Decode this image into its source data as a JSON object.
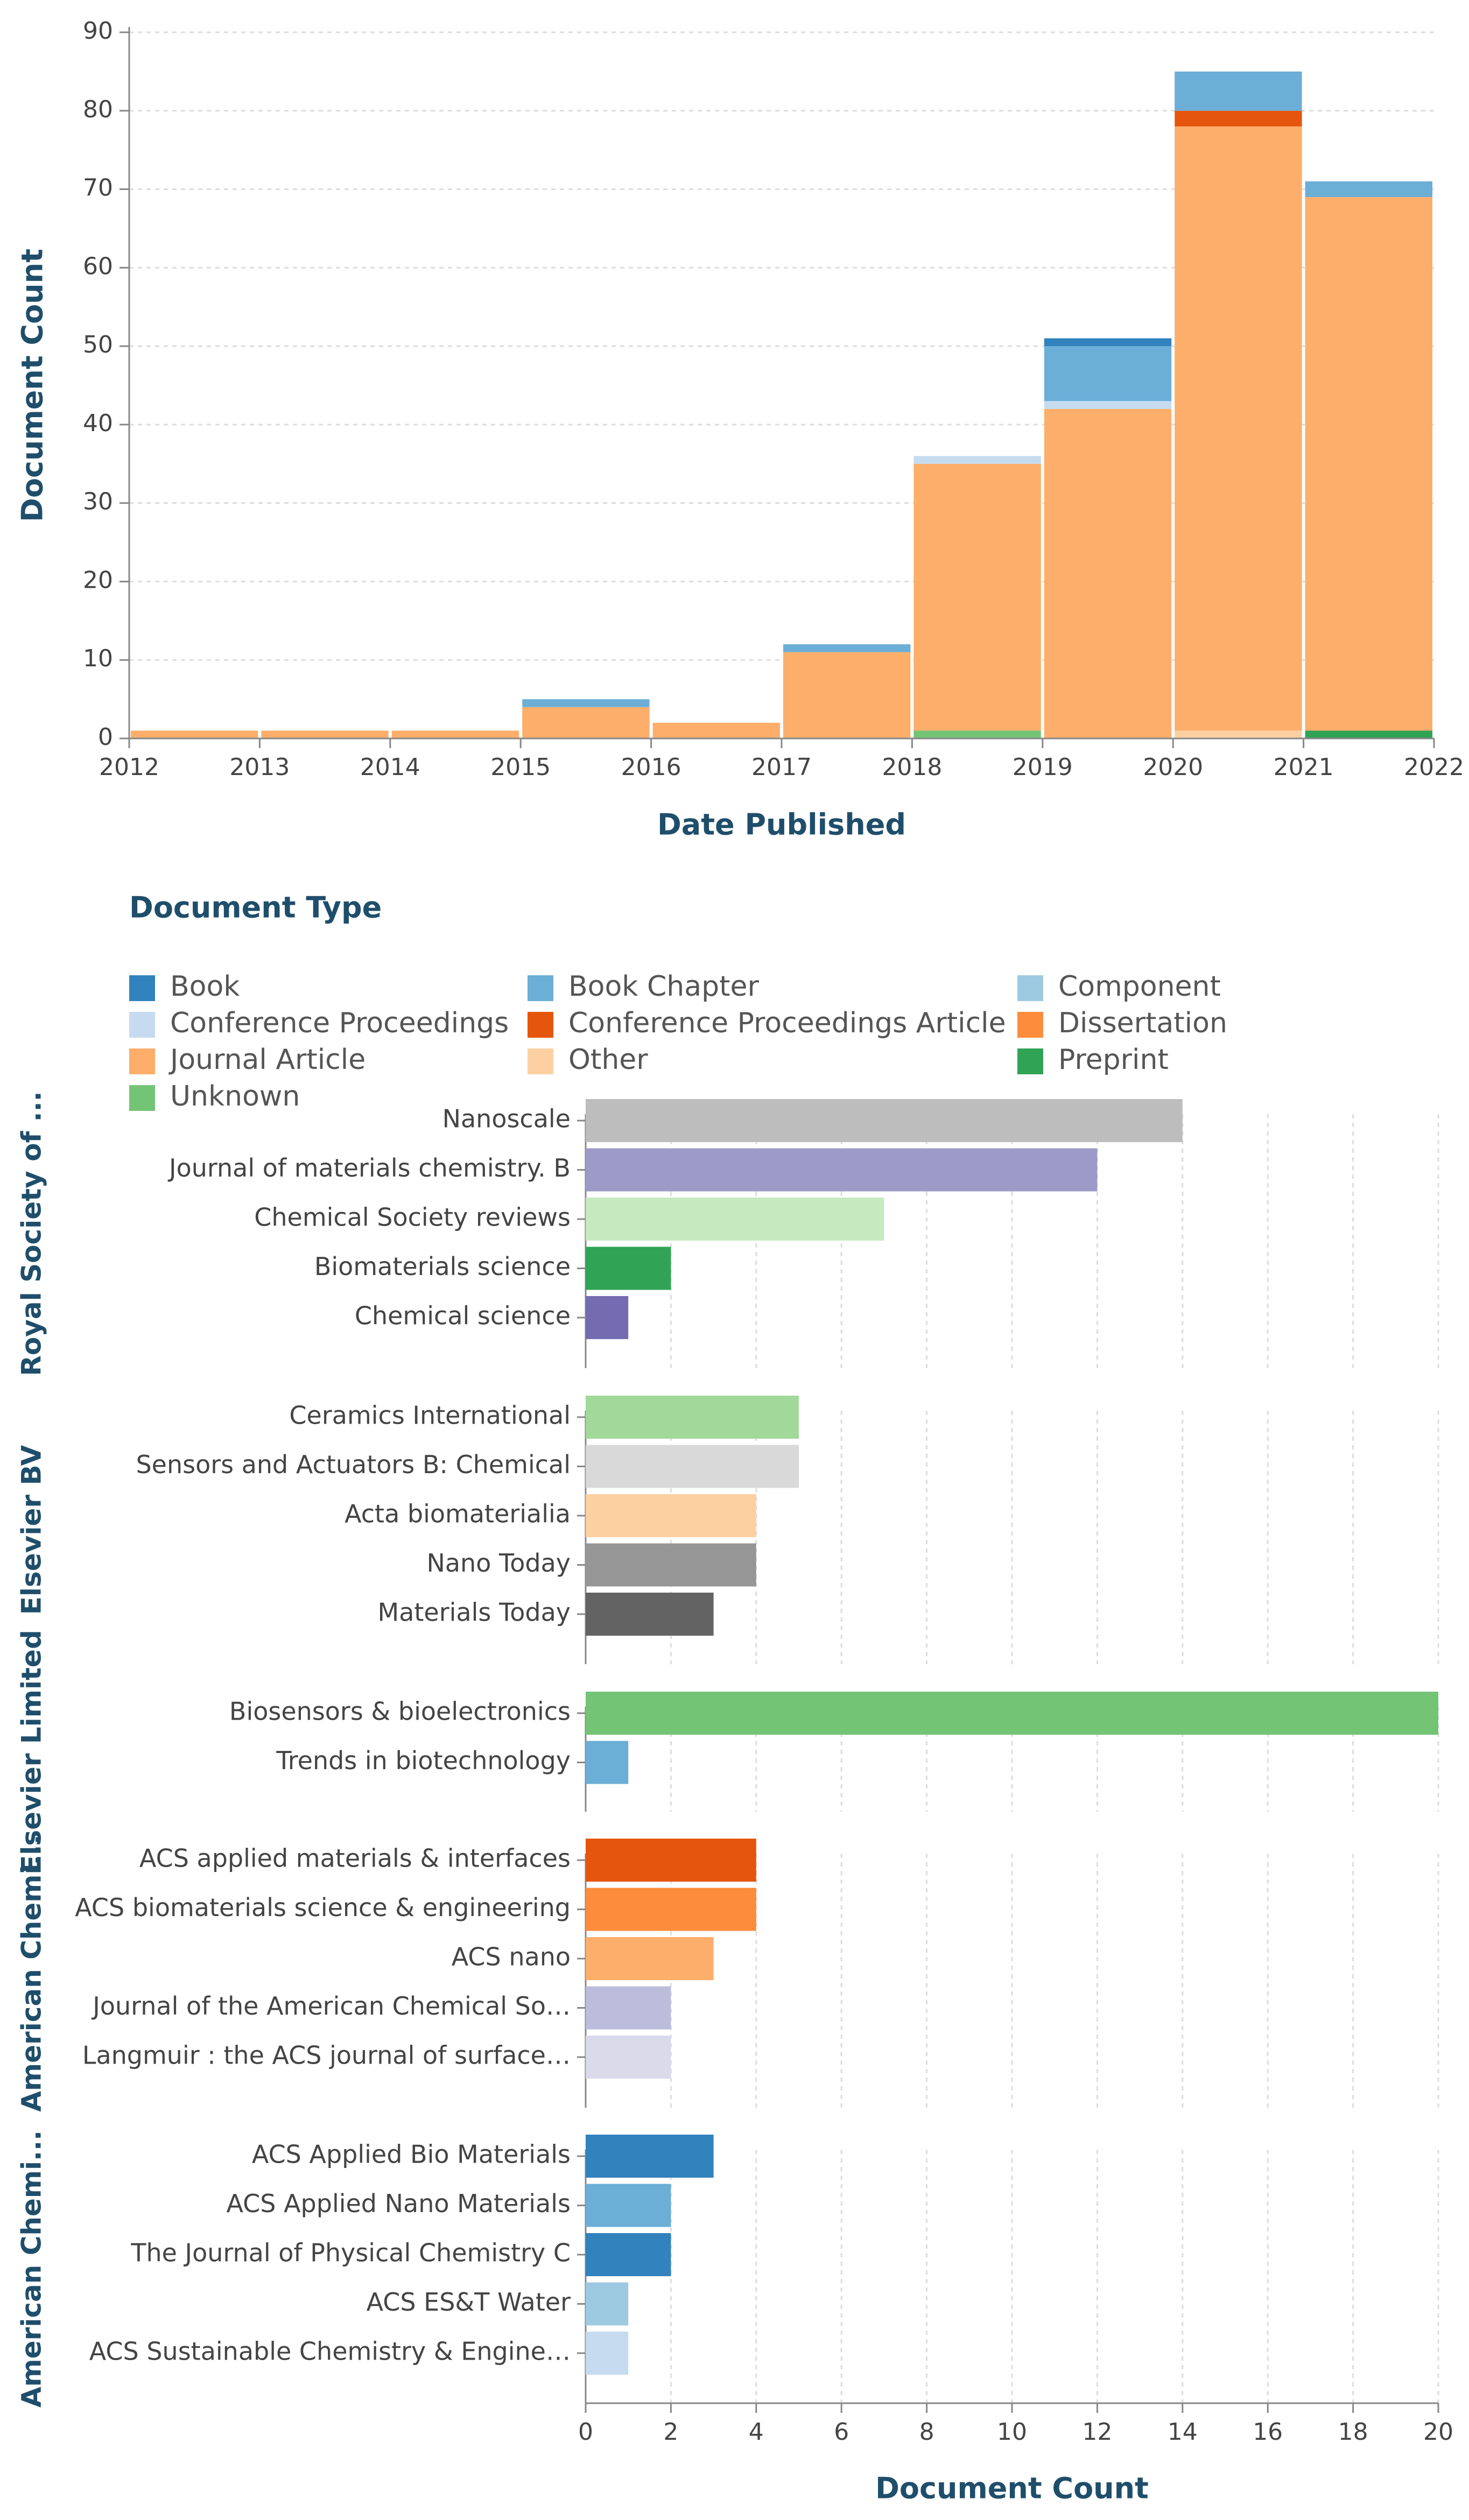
{
  "colors": {
    "Book": "#3182bd",
    "Book Chapter": "#6baed6",
    "Component": "#9ecae1",
    "Conference Proceedings": "#c6dbef",
    "Conference Proceedings Article": "#e6550d",
    "Dissertation": "#fd8d3c",
    "Journal Article": "#fdae6b",
    "Other": "#fdd0a2",
    "Preprint": "#31a354",
    "Unknown": "#74c476",
    "axis_title": "#1f4e6b",
    "grid": "#dddddd",
    "text": "#444444"
  },
  "chart_data": [
    {
      "type": "bar",
      "stacked": true,
      "title": "",
      "xlabel": "Date Published",
      "ylabel": "Document Count",
      "ylim": [
        0,
        90
      ],
      "yticks": [
        0,
        10,
        20,
        30,
        40,
        50,
        60,
        70,
        80,
        90
      ],
      "xticks": [
        "2012",
        "2013",
        "2014",
        "2015",
        "2016",
        "2017",
        "2018",
        "2019",
        "2020",
        "2021",
        "2022"
      ],
      "bins": [
        {
          "start": 2012,
          "end": 2013,
          "stack": [
            {
              "type": "Journal Article",
              "value": 1
            }
          ]
        },
        {
          "start": 2013,
          "end": 2014,
          "stack": [
            {
              "type": "Journal Article",
              "value": 1
            }
          ]
        },
        {
          "start": 2014,
          "end": 2015,
          "stack": [
            {
              "type": "Journal Article",
              "value": 1
            }
          ]
        },
        {
          "start": 2015,
          "end": 2016,
          "stack": [
            {
              "type": "Journal Article",
              "value": 4
            },
            {
              "type": "Book Chapter",
              "value": 1
            }
          ]
        },
        {
          "start": 2016,
          "end": 2017,
          "stack": [
            {
              "type": "Journal Article",
              "value": 2
            }
          ]
        },
        {
          "start": 2017,
          "end": 2018,
          "stack": [
            {
              "type": "Journal Article",
              "value": 11
            },
            {
              "type": "Book Chapter",
              "value": 1
            }
          ]
        },
        {
          "start": 2018,
          "end": 2019,
          "stack": [
            {
              "type": "Unknown",
              "value": 1
            },
            {
              "type": "Journal Article",
              "value": 34
            },
            {
              "type": "Conference Proceedings",
              "value": 1
            }
          ]
        },
        {
          "start": 2019,
          "end": 2020,
          "stack": [
            {
              "type": "Journal Article",
              "value": 42
            },
            {
              "type": "Conference Proceedings",
              "value": 1
            },
            {
              "type": "Book Chapter",
              "value": 7
            },
            {
              "type": "Book",
              "value": 1
            }
          ]
        },
        {
          "start": 2020,
          "end": 2021,
          "stack": [
            {
              "type": "Other",
              "value": 1
            },
            {
              "type": "Journal Article",
              "value": 77
            },
            {
              "type": "Conference Proceedings Article",
              "value": 2
            },
            {
              "type": "Book Chapter",
              "value": 5
            }
          ]
        },
        {
          "start": 2021,
          "end": 2022,
          "stack": [
            {
              "type": "Preprint",
              "value": 1
            },
            {
              "type": "Journal Article",
              "value": 68
            },
            {
              "type": "Book Chapter",
              "value": 2
            }
          ]
        }
      ]
    },
    {
      "type": "bar",
      "orientation": "horizontal",
      "xlabel": "Document Count",
      "xlim": [
        0,
        20
      ],
      "xticks": [
        0,
        2,
        4,
        6,
        8,
        10,
        12,
        14,
        16,
        18,
        20
      ],
      "groups": [
        {
          "name": "Royal Society of ...",
          "bars": [
            {
              "label": "Nanoscale",
              "value": 14,
              "color": "#bdbdbd"
            },
            {
              "label": "Journal of materials chemistry. B",
              "value": 12,
              "color": "#9e9ac8"
            },
            {
              "label": "Chemical Society reviews",
              "value": 7,
              "color": "#c7e9c0"
            },
            {
              "label": "Biomaterials science",
              "value": 2,
              "color": "#31a354"
            },
            {
              "label": "Chemical science",
              "value": 1,
              "color": "#756bb1"
            }
          ]
        },
        {
          "name": "Elsevier BV",
          "bars": [
            {
              "label": "Ceramics International",
              "value": 5,
              "color": "#a1d99b"
            },
            {
              "label": "Sensors and Actuators B: Chemical",
              "value": 5,
              "color": "#d9d9d9"
            },
            {
              "label": "Acta biomaterialia",
              "value": 4,
              "color": "#fdd0a2"
            },
            {
              "label": "Nano Today",
              "value": 4,
              "color": "#969696"
            },
            {
              "label": "Materials Today",
              "value": 3,
              "color": "#636363"
            }
          ]
        },
        {
          "name": "Elsevier Limited",
          "bars": [
            {
              "label": "Biosensors & bioelectronics",
              "value": 20,
              "color": "#74c476"
            },
            {
              "label": "Trends in biotechnology",
              "value": 1,
              "color": "#6baed6"
            }
          ]
        },
        {
          "name": "American Chemi...",
          "bars": [
            {
              "label": "ACS applied materials & interfaces",
              "value": 4,
              "color": "#e6550d"
            },
            {
              "label": "ACS biomaterials science & engineering",
              "value": 4,
              "color": "#fd8d3c"
            },
            {
              "label": "ACS nano",
              "value": 3,
              "color": "#fdae6b"
            },
            {
              "label": "Journal of the American Chemical So…",
              "value": 2,
              "color": "#bcbddc"
            },
            {
              "label": "Langmuir : the ACS journal of surface…",
              "value": 2,
              "color": "#dadaeb"
            }
          ]
        },
        {
          "name": "American Chemi...",
          "bars": [
            {
              "label": "ACS Applied Bio Materials",
              "value": 3,
              "color": "#3182bd"
            },
            {
              "label": "ACS Applied Nano Materials",
              "value": 2,
              "color": "#6baed6"
            },
            {
              "label": "The Journal of Physical Chemistry C",
              "value": 2,
              "color": "#3182bd"
            },
            {
              "label": "ACS ES&T Water",
              "value": 1,
              "color": "#9ecae1"
            },
            {
              "label": "ACS Sustainable Chemistry & Engine…",
              "value": 1,
              "color": "#c6dbef"
            }
          ]
        }
      ]
    }
  ],
  "legend": {
    "title": "Document Type",
    "items": [
      "Book",
      "Book Chapter",
      "Component",
      "Conference Proceedings",
      "Conference Proceedings Article",
      "Dissertation",
      "Journal Article",
      "Other",
      "Preprint",
      "Unknown"
    ]
  }
}
